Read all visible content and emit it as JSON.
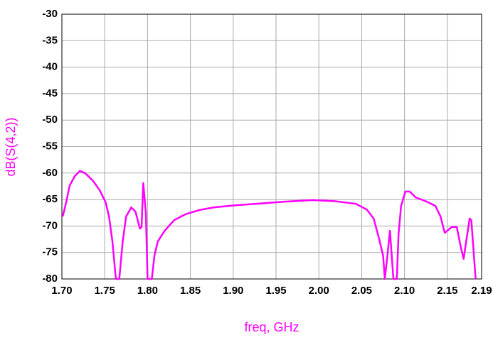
{
  "chart_data": {
    "type": "line",
    "xlabel": "freq, GHz",
    "ylabel": "dB(S(4,2))",
    "x": [
      1.701,
      1.705,
      1.709,
      1.715,
      1.721,
      1.727,
      1.736,
      1.744,
      1.751,
      1.755,
      1.759,
      1.763,
      1.767,
      1.771,
      1.775,
      1.781,
      1.786,
      1.791,
      1.793,
      1.795,
      1.798,
      1.8,
      1.805,
      1.808,
      1.812,
      1.82,
      1.831,
      1.844,
      1.86,
      1.877,
      1.902,
      1.927,
      1.96,
      1.993,
      2.018,
      2.043,
      2.056,
      2.064,
      2.07,
      2.075,
      2.077,
      2.08,
      2.083,
      2.087,
      2.091,
      2.093,
      2.096,
      2.101,
      2.106,
      2.113,
      2.126,
      2.136,
      2.142,
      2.147,
      2.155,
      2.161,
      2.166,
      2.169,
      2.172,
      2.176,
      2.178,
      2.181,
      2.183
    ],
    "series": [
      {
        "name": "dB(S(4,2))",
        "color": "#ff00ff",
        "values": [
          -68.2,
          -65.5,
          -62.4,
          -60.6,
          -59.6,
          -60,
          -61.4,
          -63.2,
          -65.5,
          -68.2,
          -72.9,
          -80,
          -80,
          -72.9,
          -68.2,
          -66.5,
          -67.3,
          -70.5,
          -70.2,
          -61.9,
          -67.5,
          -80,
          -80,
          -75.6,
          -72.9,
          -70.9,
          -68.9,
          -67.8,
          -67,
          -66.5,
          -66.1,
          -65.8,
          -65.4,
          -65.1,
          -65.3,
          -65.8,
          -66.9,
          -68.6,
          -72.2,
          -75.6,
          -80,
          -75.6,
          -70.9,
          -80,
          -80,
          -71.6,
          -66.2,
          -63.5,
          -63.5,
          -64.6,
          -65.4,
          -66.2,
          -68.2,
          -71.3,
          -70.2,
          -70.2,
          -74.2,
          -76.2,
          -72.9,
          -68.6,
          -68.9,
          -75.6,
          -80
        ]
      }
    ],
    "xlim": [
      1.7,
      2.19
    ],
    "xticks": [
      {
        "value": 1.7,
        "label": "1.70"
      },
      1.75,
      {
        "value": 1.8,
        "label": "1.80"
      },
      1.85,
      {
        "value": 1.9,
        "label": "1.90"
      },
      1.95,
      {
        "value": 2.0,
        "label": "2.00"
      },
      2.05,
      {
        "value": 2.1,
        "label": "2.10"
      },
      2.15,
      2.19
    ],
    "ylim": [
      -80,
      -30
    ],
    "yticks": [
      -80,
      -75,
      -70,
      -65,
      -60,
      -55,
      -50,
      -45,
      -40,
      -35,
      -30
    ],
    "grid": true
  }
}
